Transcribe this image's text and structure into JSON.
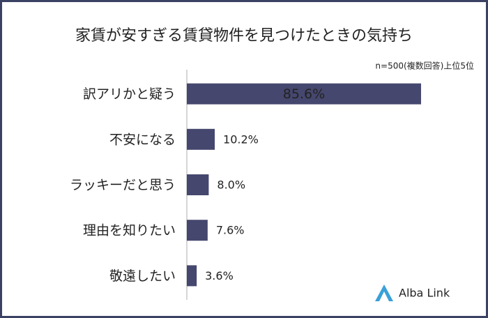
{
  "chart_data": {
    "type": "hbar",
    "title": "家賃が安すぎる賃貸物件を見つけたときの気持ち",
    "subtitle": "n=500(複数回答)上位5位",
    "categories": [
      "訳アリかと疑う",
      "不安になる",
      "ラッキーだと思う",
      "理由を知りたい",
      "敬遠したい"
    ],
    "values": [
      85.6,
      10.2,
      8.0,
      7.6,
      3.6
    ],
    "value_labels": [
      "85.6%",
      "10.2%",
      "8.0%",
      "7.6%",
      "3.6%"
    ],
    "color": "#45476e",
    "xlim": [
      0,
      100
    ],
    "logo": "Alba Link"
  }
}
